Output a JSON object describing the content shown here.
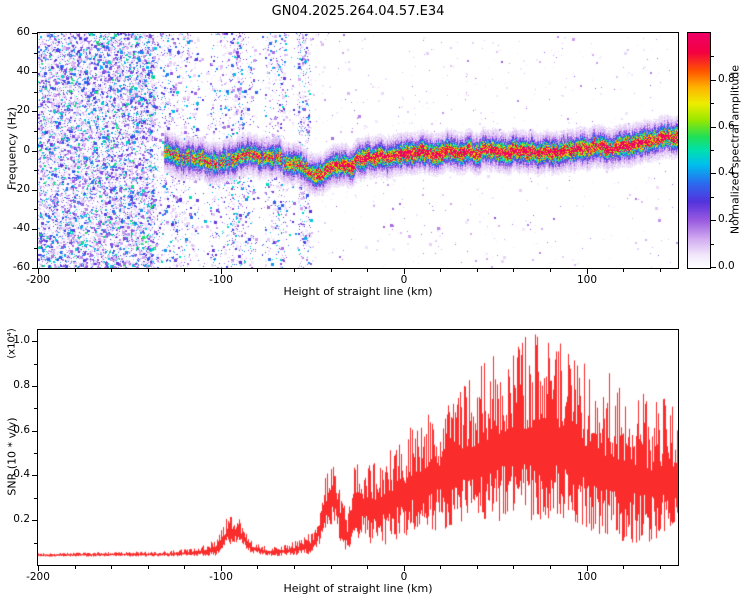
{
  "title": "GN04.2025.264.04.57.E34",
  "chart_data": [
    {
      "type": "heatmap",
      "name": "doppler-spectrogram",
      "xlabel": "Height of straight line (km)",
      "ylabel": "Frequency (Hz)",
      "xlim": [
        -200,
        150
      ],
      "ylim": [
        -60,
        60
      ],
      "xticks": [
        -200,
        -100,
        0,
        100
      ],
      "yticks": [
        60,
        40,
        20,
        0,
        -20,
        -40,
        -60
      ],
      "x_minor_step": 20,
      "y_minor_step": 10,
      "colorbar": {
        "label": "Normalized spectral amplitude",
        "ticks": [
          0,
          0.2,
          0.4,
          0.6,
          0.8
        ],
        "minor_step": 0.1,
        "range": [
          0,
          1
        ],
        "stops": [
          [
            0,
            "#ffffff"
          ],
          [
            0.05,
            "#f3eafc"
          ],
          [
            0.12,
            "#d4aef2"
          ],
          [
            0.2,
            "#9b5ce0"
          ],
          [
            0.28,
            "#5533dd"
          ],
          [
            0.36,
            "#2b6cf0"
          ],
          [
            0.44,
            "#00c0ee"
          ],
          [
            0.5,
            "#00e0b0"
          ],
          [
            0.56,
            "#22e055"
          ],
          [
            0.63,
            "#9ae800"
          ],
          [
            0.7,
            "#eeee00"
          ],
          [
            0.77,
            "#ffb400"
          ],
          [
            0.84,
            "#ff5500"
          ],
          [
            0.92,
            "#f40043"
          ],
          [
            1,
            "#ef0066"
          ]
        ]
      },
      "noise": {
        "seed": 20250264,
        "regions": [
          {
            "x": [
              -200,
              -136
            ],
            "count": 9500,
            "max_amp": 0.5
          },
          {
            "x": [
              -136,
              -51
            ],
            "count": 6200,
            "max_amp": 0.45,
            "banded": true,
            "band_step_km": 6
          },
          {
            "x": [
              -51,
              150
            ],
            "count": 650,
            "max_amp": 0.16
          }
        ]
      },
      "signal": {
        "seed": 57,
        "start_km": -131,
        "end_km": 150,
        "weak_until_km": -48,
        "core_amp_weak": 0.72,
        "core_amp_strong": 0.97,
        "sigma_hz": 2.6,
        "halo_sigma_hz": 7,
        "halo_amp": 0.17,
        "track": [
          [
            -131,
            -1
          ],
          [
            -120,
            -3
          ],
          [
            -110,
            -4
          ],
          [
            -100,
            -6
          ],
          [
            -90,
            -3
          ],
          [
            -80,
            -4
          ],
          [
            -72,
            -3
          ],
          [
            -63,
            -6
          ],
          [
            -55,
            -9
          ],
          [
            -50,
            -13
          ],
          [
            -45,
            -12
          ],
          [
            -40,
            -8
          ],
          [
            -35,
            -5
          ],
          [
            -30,
            -6
          ],
          [
            -25,
            -4
          ],
          [
            -20,
            -2
          ],
          [
            -12,
            -3
          ],
          [
            -5,
            -2
          ],
          [
            0,
            -2
          ],
          [
            8,
            -1
          ],
          [
            15,
            -2
          ],
          [
            22,
            -1
          ],
          [
            30,
            0
          ],
          [
            38,
            -1
          ],
          [
            45,
            0
          ],
          [
            52,
            -1
          ],
          [
            60,
            0
          ],
          [
            68,
            -1
          ],
          [
            75,
            0
          ],
          [
            82,
            -1
          ],
          [
            90,
            0
          ],
          [
            97,
            1
          ],
          [
            105,
            0
          ],
          [
            112,
            1
          ],
          [
            118,
            2
          ],
          [
            124,
            3
          ],
          [
            130,
            4
          ],
          [
            138,
            5
          ],
          [
            144,
            6
          ],
          [
            150,
            7
          ]
        ]
      }
    },
    {
      "type": "line",
      "name": "snr-profile",
      "xlabel": "Height of straight line (km)",
      "ylabel": "SNR (10 * v/v)",
      "y_scale_label": "(x10⁴)",
      "xlim": [
        -200,
        150
      ],
      "ylim": [
        0,
        1.05
      ],
      "xticks": [
        -200,
        -100,
        0,
        100
      ],
      "yticks": [
        0.2,
        0.4,
        0.6,
        0.8,
        1.0
      ],
      "x_minor_step": 20,
      "y_minor_step": 0.1,
      "color": "#fa2c2c",
      "seed": 464,
      "envelope": [
        [
          -200,
          0.045,
          0.008
        ],
        [
          -160,
          0.048,
          0.01
        ],
        [
          -130,
          0.05,
          0.012
        ],
        [
          -112,
          0.06,
          0.02
        ],
        [
          -102,
          0.08,
          0.04
        ],
        [
          -96,
          0.16,
          0.07
        ],
        [
          -90,
          0.15,
          0.06
        ],
        [
          -83,
          0.08,
          0.03
        ],
        [
          -75,
          0.06,
          0.02
        ],
        [
          -65,
          0.065,
          0.025
        ],
        [
          -57,
          0.08,
          0.035
        ],
        [
          -50,
          0.1,
          0.05
        ],
        [
          -46,
          0.18,
          0.1
        ],
        [
          -42,
          0.3,
          0.14
        ],
        [
          -38,
          0.32,
          0.13
        ],
        [
          -34,
          0.2,
          0.12
        ],
        [
          -31,
          0.13,
          0.08
        ],
        [
          -28,
          0.28,
          0.16
        ],
        [
          -24,
          0.3,
          0.18
        ],
        [
          -18,
          0.28,
          0.2
        ],
        [
          -12,
          0.3,
          0.22
        ],
        [
          -6,
          0.33,
          0.22
        ],
        [
          0,
          0.36,
          0.24
        ],
        [
          8,
          0.4,
          0.26
        ],
        [
          16,
          0.43,
          0.28
        ],
        [
          24,
          0.46,
          0.3
        ],
        [
          32,
          0.5,
          0.32
        ],
        [
          40,
          0.53,
          0.34
        ],
        [
          48,
          0.56,
          0.38
        ],
        [
          56,
          0.6,
          0.4
        ],
        [
          64,
          0.6,
          0.42
        ],
        [
          72,
          0.62,
          0.42
        ],
        [
          80,
          0.6,
          0.42
        ],
        [
          88,
          0.58,
          0.4
        ],
        [
          96,
          0.54,
          0.38
        ],
        [
          104,
          0.5,
          0.36
        ],
        [
          112,
          0.48,
          0.38
        ],
        [
          120,
          0.46,
          0.36
        ],
        [
          128,
          0.44,
          0.34
        ],
        [
          136,
          0.42,
          0.32
        ],
        [
          144,
          0.45,
          0.3
        ],
        [
          150,
          0.42,
          0.28
        ]
      ]
    }
  ]
}
